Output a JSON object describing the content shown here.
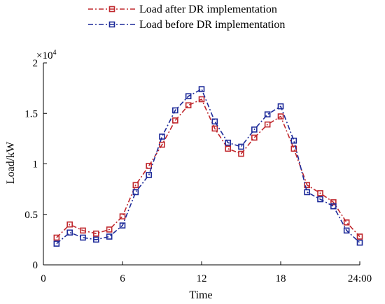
{
  "chart_data": {
    "type": "line",
    "x": [
      1,
      2,
      3,
      4,
      5,
      6,
      7,
      8,
      9,
      10,
      11,
      12,
      13,
      14,
      15,
      16,
      17,
      18,
      19,
      20,
      21,
      22,
      23,
      24
    ],
    "series": [
      {
        "name": "Load after DR implementation",
        "color": "#c0282d",
        "marker": "square",
        "values": [
          2700,
          4000,
          3400,
          3100,
          3500,
          4800,
          7900,
          9800,
          11900,
          14300,
          15800,
          16400,
          13500,
          11500,
          11000,
          12600,
          13900,
          14700,
          11500,
          7900,
          7100,
          6200,
          4200,
          2800
        ]
      },
      {
        "name": "Load before DR implementation",
        "color": "#1d2a99",
        "marker": "square",
        "values": [
          2100,
          3200,
          2700,
          2500,
          2800,
          3900,
          7200,
          8900,
          12700,
          15300,
          16700,
          17400,
          14200,
          12100,
          11700,
          13400,
          14900,
          15700,
          12300,
          7200,
          6500,
          5800,
          3400,
          2200
        ]
      }
    ],
    "xlabel": "Time",
    "ylabel": "Load/kW",
    "xlim": [
      0,
      24
    ],
    "ylim": [
      0,
      20000
    ],
    "xticks": [
      0,
      6,
      12,
      18,
      24
    ],
    "xtick_labels": [
      "0",
      "6",
      "12",
      "18",
      "24:00"
    ],
    "yticks": [
      0,
      5000,
      10000,
      15000,
      20000
    ],
    "ytick_labels": [
      "0",
      "0.5",
      "1",
      "1.5",
      "2"
    ],
    "y_exponent_base": "×10",
    "y_exponent_power": "4",
    "grid": false,
    "legend_position": "top"
  }
}
